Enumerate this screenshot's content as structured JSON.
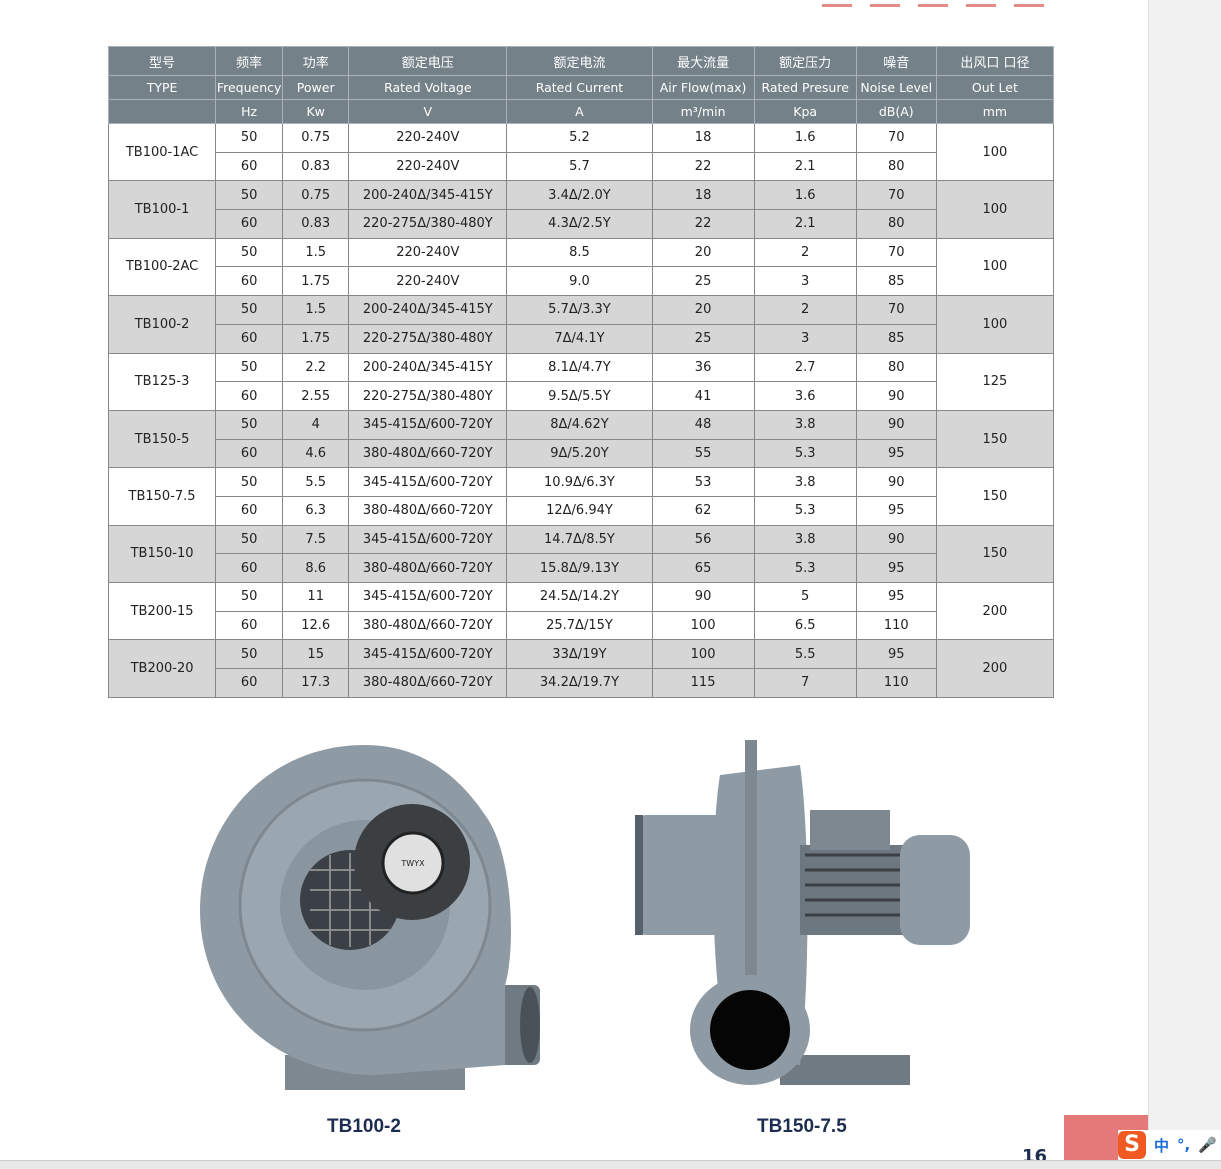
{
  "table": {
    "header_cn": [
      "型号",
      "频率",
      "功率",
      "额定电压",
      "额定电流",
      "最大流量",
      "额定压力",
      "噪音",
      "出风口 口径"
    ],
    "header_en": [
      "TYPE",
      "Frequency",
      "Power",
      "Rated Voltage",
      "Rated Current",
      "Air Flow(max)",
      "Rated Presure",
      "Noise Level",
      "Out Let"
    ],
    "units": [
      "",
      "Hz",
      "Kw",
      "V",
      "A",
      "m³/min",
      "Kpa",
      "dB(A)",
      "mm"
    ],
    "models": [
      {
        "type": "TB100-1AC",
        "outlet": "100",
        "rows": [
          [
            "50",
            "0.75",
            "220-240V",
            "5.2",
            "18",
            "1.6",
            "70"
          ],
          [
            "60",
            "0.83",
            "220-240V",
            "5.7",
            "22",
            "2.1",
            "80"
          ]
        ]
      },
      {
        "type": "TB100-1",
        "outlet": "100",
        "rows": [
          [
            "50",
            "0.75",
            "200-240Δ/345-415Y",
            "3.4Δ/2.0Y",
            "18",
            "1.6",
            "70"
          ],
          [
            "60",
            "0.83",
            "220-275Δ/380-480Y",
            "4.3Δ/2.5Y",
            "22",
            "2.1",
            "80"
          ]
        ]
      },
      {
        "type": "TB100-2AC",
        "outlet": "100",
        "rows": [
          [
            "50",
            "1.5",
            "220-240V",
            "8.5",
            "20",
            "2",
            "70"
          ],
          [
            "60",
            "1.75",
            "220-240V",
            "9.0",
            "25",
            "3",
            "85"
          ]
        ]
      },
      {
        "type": "TB100-2",
        "outlet": "100",
        "rows": [
          [
            "50",
            "1.5",
            "200-240Δ/345-415Y",
            "5.7Δ/3.3Y",
            "20",
            "2",
            "70"
          ],
          [
            "60",
            "1.75",
            "220-275Δ/380-480Y",
            "7Δ/4.1Y",
            "25",
            "3",
            "85"
          ]
        ]
      },
      {
        "type": "TB125-3",
        "outlet": "125",
        "rows": [
          [
            "50",
            "2.2",
            "200-240Δ/345-415Y",
            "8.1Δ/4.7Y",
            "36",
            "2.7",
            "80"
          ],
          [
            "60",
            "2.55",
            "220-275Δ/380-480Y",
            "9.5Δ/5.5Y",
            "41",
            "3.6",
            "90"
          ]
        ]
      },
      {
        "type": "TB150-5",
        "outlet": "150",
        "rows": [
          [
            "50",
            "4",
            "345-415Δ/600-720Y",
            "8Δ/4.62Y",
            "48",
            "3.8",
            "90"
          ],
          [
            "60",
            "4.6",
            "380-480Δ/660-720Y",
            "9Δ/5.20Y",
            "55",
            "5.3",
            "95"
          ]
        ]
      },
      {
        "type": "TB150-7.5",
        "outlet": "150",
        "rows": [
          [
            "50",
            "5.5",
            "345-415Δ/600-720Y",
            "10.9Δ/6.3Y",
            "53",
            "3.8",
            "90"
          ],
          [
            "60",
            "6.3",
            "380-480Δ/660-720Y",
            "12Δ/6.94Y",
            "62",
            "5.3",
            "95"
          ]
        ]
      },
      {
        "type": "TB150-10",
        "outlet": "150",
        "rows": [
          [
            "50",
            "7.5",
            "345-415Δ/600-720Y",
            "14.7Δ/8.5Y",
            "56",
            "3.8",
            "90"
          ],
          [
            "60",
            "8.6",
            "380-480Δ/660-720Y",
            "15.8Δ/9.13Y",
            "65",
            "5.3",
            "95"
          ]
        ]
      },
      {
        "type": "TB200-15",
        "outlet": "200",
        "rows": [
          [
            "50",
            "11",
            "345-415Δ/600-720Y",
            "24.5Δ/14.2Y",
            "90",
            "5",
            "95"
          ],
          [
            "60",
            "12.6",
            "380-480Δ/660-720Y",
            "25.7Δ/15Y",
            "100",
            "6.5",
            "110"
          ]
        ]
      },
      {
        "type": "TB200-20",
        "outlet": "200",
        "rows": [
          [
            "50",
            "15",
            "345-415Δ/600-720Y",
            "33Δ/19Y",
            "100",
            "5.5",
            "95"
          ],
          [
            "60",
            "17.3",
            "380-480Δ/660-720Y",
            "34.2Δ/19.7Y",
            "115",
            "7",
            "110"
          ]
        ]
      }
    ]
  },
  "images": {
    "left_caption": "TB100-2",
    "right_caption": "TB150-7.5",
    "badge": "TWYX"
  },
  "page_number": "16",
  "ime": {
    "logo": "S",
    "lang": "中",
    "punct": "°,",
    "mic_icon": "microphone-icon"
  },
  "colors": {
    "header": "#748189",
    "alt_row": "#d6d6d6",
    "caption": "#1d2d50",
    "accent": "#e57878"
  }
}
